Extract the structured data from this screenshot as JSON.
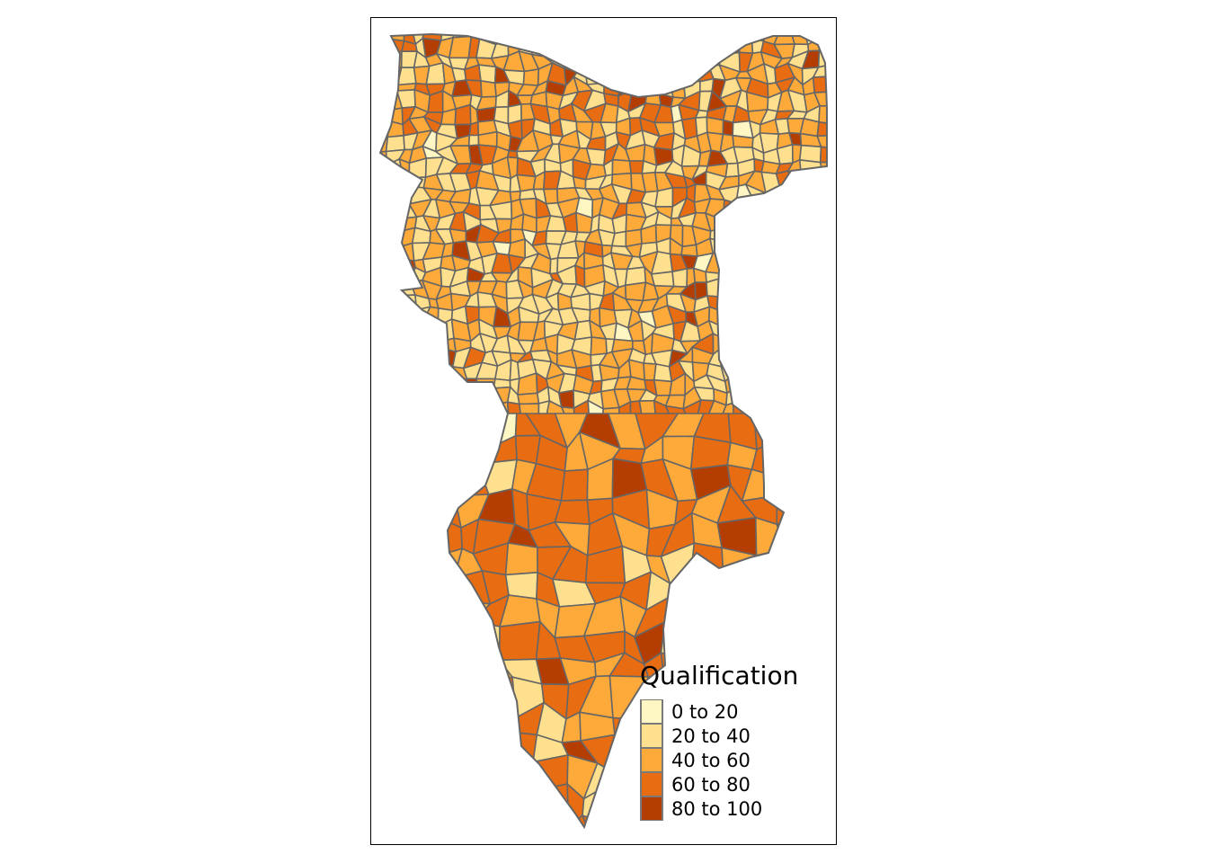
{
  "legend": {
    "title": "Qualification",
    "items": [
      {
        "label": "0 to 20",
        "color": "#fff7c3"
      },
      {
        "label": "20 to 40",
        "color": "#fee08e"
      },
      {
        "label": "40 to 60",
        "color": "#fdaa3b"
      },
      {
        "label": "60 to 80",
        "color": "#e76c12"
      },
      {
        "label": "80 to 100",
        "color": "#b43e02"
      }
    ]
  },
  "border_color": "#666666"
}
